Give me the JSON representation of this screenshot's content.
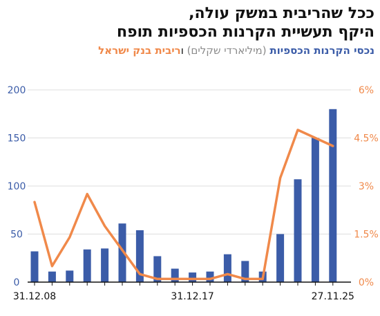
{
  "title": {
    "line1": "ככל שהריבית במשק עולה,",
    "line2": "היקף תעשיית הקרנות הכספיות תופח"
  },
  "legend": {
    "blue_label": "נכסי הקרנות הכספיות",
    "blue_unit": "(מיליארדי שקלים)",
    "conjunction": "ו",
    "orange_label": "ריבית בנק ישראל"
  },
  "colors": {
    "bars": "#3b5ca8",
    "line": "#f0894a",
    "axis": "#111111",
    "grid": "#dddddd"
  },
  "chart_data": {
    "type": "bar",
    "x_tick_labels": [
      "31.12.08",
      "31.12.17",
      "27.11.25"
    ],
    "series": [
      {
        "name": "נכסי הקרנות הכספיות",
        "type": "bar",
        "axis": "left",
        "values": [
          32,
          11,
          12,
          34,
          35,
          61,
          54,
          27,
          14,
          10,
          11,
          29,
          22,
          11,
          50,
          107,
          150,
          180
        ]
      },
      {
        "name": "ריבית בנק ישראל",
        "type": "line",
        "axis": "right",
        "values": [
          2.5,
          0.5,
          1.4,
          2.75,
          1.75,
          1.0,
          0.25,
          0.1,
          0.1,
          0.1,
          0.1,
          0.25,
          0.1,
          0.1,
          3.25,
          4.75,
          4.5,
          4.25
        ]
      }
    ],
    "ylim_left": [
      0,
      200
    ],
    "yticks_left": [
      "0",
      "50",
      "100",
      "150",
      "200"
    ],
    "ylim_right": [
      0,
      6
    ],
    "yticks_right": [
      "0%",
      "1.5%",
      "3%",
      "4.5%",
      "6%"
    ],
    "grid": true
  }
}
